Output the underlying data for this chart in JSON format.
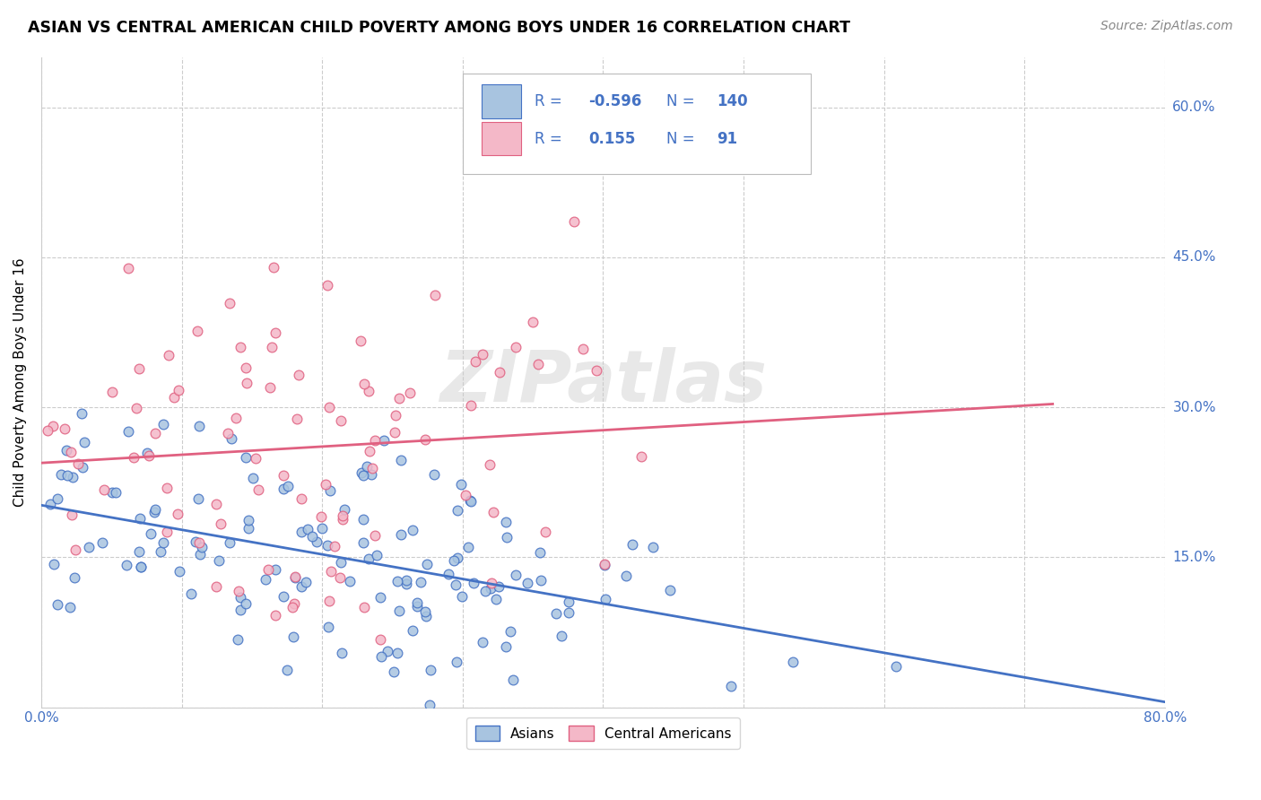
{
  "title": "ASIAN VS CENTRAL AMERICAN CHILD POVERTY AMONG BOYS UNDER 16 CORRELATION CHART",
  "source": "Source: ZipAtlas.com",
  "ylabel": "Child Poverty Among Boys Under 16",
  "watermark": "ZIPatlas",
  "legend_asian_R": "-0.596",
  "legend_asian_N": "140",
  "legend_ca_R": "0.155",
  "legend_ca_N": "91",
  "xlim": [
    0.0,
    0.8
  ],
  "ylim": [
    0.0,
    0.65
  ],
  "yticks": [
    0.0,
    0.15,
    0.3,
    0.45,
    0.6
  ],
  "xticks": [
    0.0,
    0.1,
    0.2,
    0.3,
    0.4,
    0.5,
    0.6,
    0.7,
    0.8
  ],
  "color_asian": "#a8c4e0",
  "color_asian_line": "#4472c4",
  "color_ca": "#f4b8c8",
  "color_ca_line": "#e06080",
  "color_blue": "#4472c4",
  "background_color": "#ffffff",
  "grid_color": "#cccccc",
  "asian_label": "Asians",
  "ca_label": "Central Americans"
}
